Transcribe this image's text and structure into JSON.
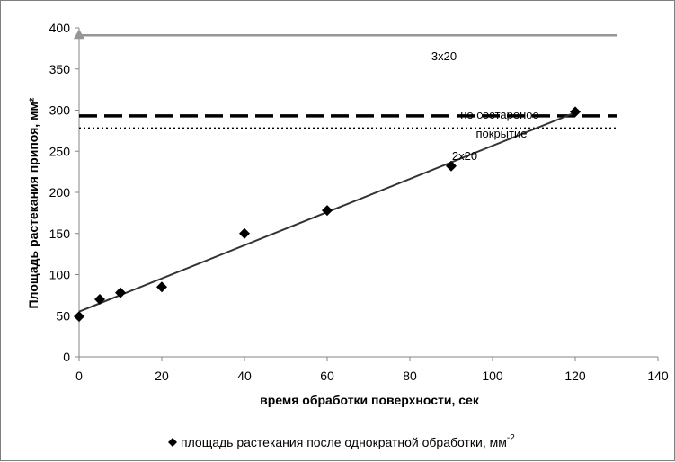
{
  "chart_data": {
    "type": "scatter",
    "title": "",
    "xlabel": "время обработки поверхности, сек",
    "ylabel": "Площадь растекания припоя, мм²",
    "xlim": [
      0,
      140
    ],
    "ylim": [
      0,
      400
    ],
    "x_ticks": [
      "0",
      "20",
      "40",
      "60",
      "80",
      "100",
      "120",
      "140"
    ],
    "y_ticks": [
      "0",
      "50",
      "100",
      "150",
      "200",
      "250",
      "300",
      "350",
      "400"
    ],
    "grid": false,
    "legend_position": "bottom",
    "series": [
      {
        "name": "площадь растекания после однократной обработки, мм",
        "name_superscript": "-2",
        "marker": "diamond",
        "color": "#000000",
        "x": [
          0,
          5,
          10,
          20,
          40,
          60,
          90,
          120
        ],
        "y": [
          49,
          70,
          78,
          85,
          150,
          178,
          232,
          298
        ]
      }
    ],
    "trendline": {
      "x": [
        0,
        120
      ],
      "y": [
        55,
        297
      ],
      "color": "#333333"
    },
    "reference_lines": [
      {
        "label": "3x20",
        "y": 391,
        "style": "solid",
        "color": "#969696",
        "x_range": [
          0,
          130
        ],
        "marker_at_start": "triangle"
      },
      {
        "label_line1": "не состареное",
        "label_line2": "покрытие",
        "y": 293,
        "style": "dashed",
        "color": "#000000",
        "x_range": [
          0,
          130
        ]
      },
      {
        "label": "2x20",
        "y": 278,
        "style": "dotted",
        "color": "#000000",
        "x_range": [
          0,
          130
        ]
      }
    ]
  }
}
